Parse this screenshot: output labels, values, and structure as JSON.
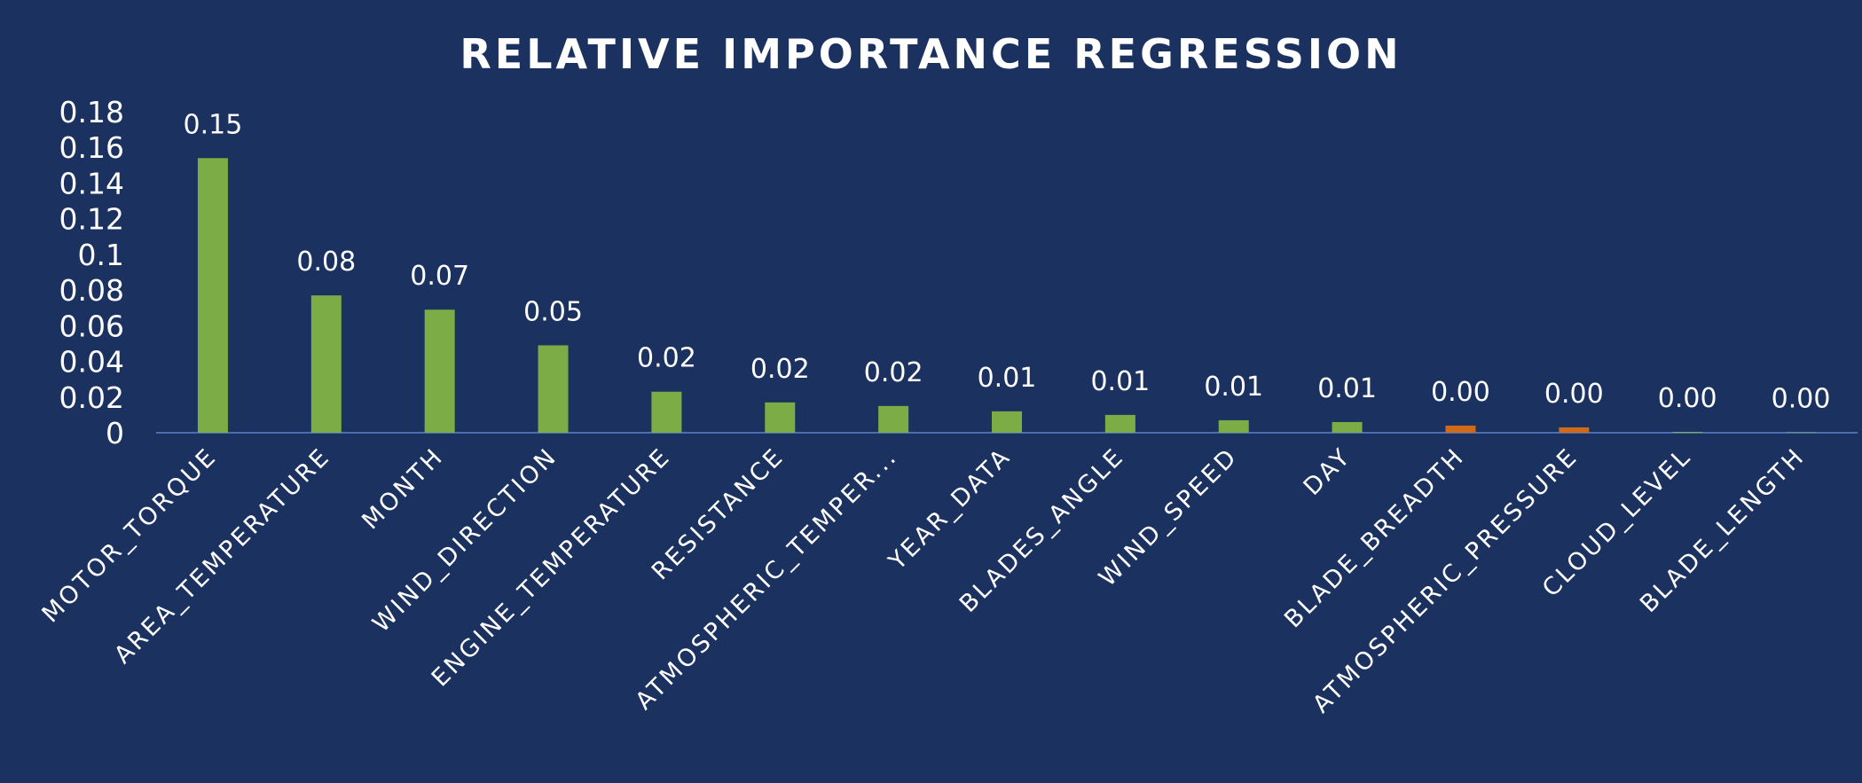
{
  "chart_data": {
    "type": "bar",
    "title": "RELATIVE IMPORTANCE REGRESSION",
    "xlabel": "",
    "ylabel": "",
    "ylim": [
      0,
      0.18
    ],
    "y_ticks": [
      "0",
      "0.02",
      "0.04",
      "0.06",
      "0.08",
      "0.1",
      "0.12",
      "0.14",
      "0.16",
      "0.18"
    ],
    "y_tick_values": [
      0,
      0.02,
      0.04,
      0.06,
      0.08,
      0.1,
      0.12,
      0.14,
      0.16,
      0.18
    ],
    "grid": false,
    "legend": "none",
    "categories": [
      "MOTOR_TORQUE",
      "AREA_TEMPERATURE",
      "MONTH",
      "WIND_DIRECTION",
      "ENGINE_TEMPERATURE",
      "RESISTANCE",
      "ATMOSPHERIC_TEMPER...",
      "YEAR_DATA",
      "BLADES_ANGLE",
      "WIND_SPEED",
      "DAY",
      "BLADE_BREADTH",
      "ATMOSPHERIC_PRESSURE",
      "CLOUD_LEVEL",
      "BLADE_LENGTH"
    ],
    "values": [
      0.154,
      0.077,
      0.069,
      0.049,
      0.023,
      0.017,
      0.015,
      0.012,
      0.01,
      0.007,
      0.006,
      0.004,
      0.003,
      0.0005,
      0.0001
    ],
    "data_labels": [
      "0.15",
      "0.08",
      "0.07",
      "0.05",
      "0.02",
      "0.02",
      "0.02",
      "0.01",
      "0.01",
      "0.01",
      "0.01",
      "0.00",
      "0.00",
      "0.00",
      "0.00"
    ],
    "bar_colors": [
      "#7cac46",
      "#7cac46",
      "#7cac46",
      "#7cac46",
      "#7cac46",
      "#7cac46",
      "#7cac46",
      "#7cac46",
      "#7cac46",
      "#7cac46",
      "#7cac46",
      "#cf6a1b",
      "#cf6a1b",
      "#7cac46",
      "#7cac46"
    ],
    "colors": {
      "background": "#1b3160",
      "positive": "#7cac46",
      "negative": "#cf6a1b",
      "axis": "#4a6fb0",
      "text": "#ffffff"
    }
  }
}
